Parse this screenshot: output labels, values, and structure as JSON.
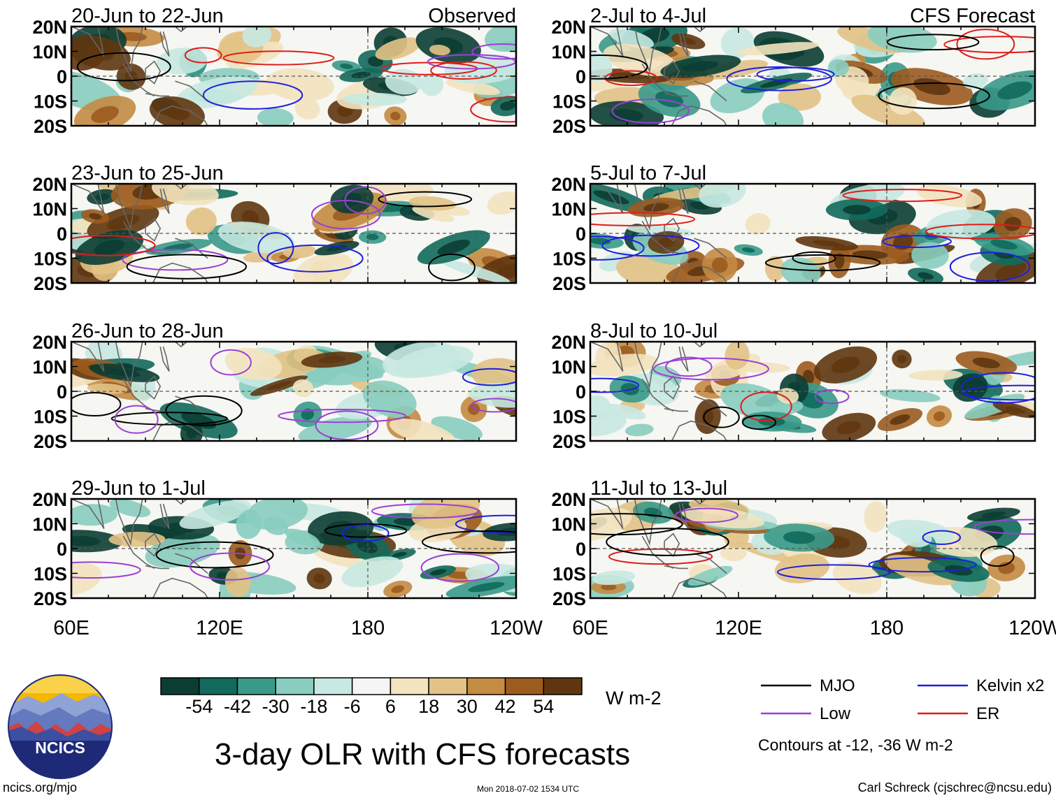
{
  "chart_data": {
    "type": "heatmap",
    "title": "3-day OLR with CFS forecasts",
    "variable": "OLR anomaly",
    "units": "W m-2",
    "x_ticks": [
      "60E",
      "120E",
      "180",
      "120W"
    ],
    "y_ticks": [
      "20N",
      "10N",
      "0",
      "10S",
      "20S"
    ],
    "x_range": [
      "60E",
      "120W"
    ],
    "y_range": [
      "20S",
      "20N"
    ],
    "colorbar": {
      "levels": [
        -54,
        -42,
        -30,
        -18,
        -6,
        6,
        18,
        30,
        42,
        54
      ],
      "labels": [
        "-54",
        "-42",
        "-30",
        "-18",
        "-6",
        "6",
        "18",
        "30",
        "42",
        "54"
      ],
      "colors": [
        "#0b3d33",
        "#116a5b",
        "#3a9a89",
        "#88cdbf",
        "#c8e9e1",
        "#f5f5f5",
        "#f3e3bf",
        "#e2c285",
        "#c48b43",
        "#9c5b1f",
        "#5f360f"
      ]
    },
    "contour_note": "Contours at -12, -36 W m-2",
    "legend": [
      {
        "label": "MJO",
        "color": "#000000"
      },
      {
        "label": "Kelvin x2",
        "color": "#1f1fdc"
      },
      {
        "label": "Low",
        "color": "#9b3fd6"
      },
      {
        "label": "ER",
        "color": "#e01b1b"
      }
    ],
    "panels": [
      {
        "title": "20-Jun to 22-Jun",
        "tag": "Observed",
        "seed": 11
      },
      {
        "title": "23-Jun to 25-Jun",
        "tag": "",
        "seed": 23
      },
      {
        "title": "26-Jun to 28-Jun",
        "tag": "",
        "seed": 37
      },
      {
        "title": "29-Jun to 1-Jul",
        "tag": "",
        "seed": 41
      },
      {
        "title": "2-Jul to 4-Jul",
        "tag": "CFS Forecast",
        "seed": 53
      },
      {
        "title": "5-Jul to 7-Jul",
        "tag": "",
        "seed": 67
      },
      {
        "title": "8-Jul to 10-Jul",
        "tag": "",
        "seed": 79
      },
      {
        "title": "11-Jul to 13-Jul",
        "tag": "",
        "seed": 83
      }
    ]
  },
  "footer": {
    "logo_text": "NCICS",
    "url": "ncics.org/mjo",
    "timestamp": "Mon 2018-07-02 1534 UTC",
    "credit": "Carl Schreck (cjschrec@ncsu.edu)"
  }
}
